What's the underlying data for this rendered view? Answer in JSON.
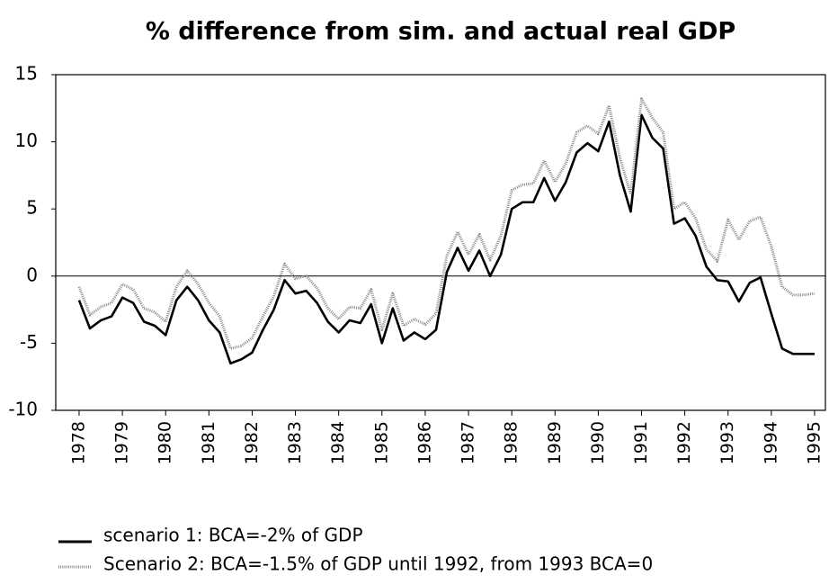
{
  "chart_data": {
    "type": "line",
    "title": "% difference from sim. and actual real GDP",
    "x": [
      1978,
      1978.25,
      1978.5,
      1978.75,
      1979,
      1979.25,
      1979.5,
      1979.75,
      1980,
      1980.25,
      1980.5,
      1980.75,
      1981,
      1981.25,
      1981.5,
      1981.75,
      1982,
      1982.25,
      1982.5,
      1982.75,
      1983,
      1983.25,
      1983.5,
      1983.75,
      1984,
      1984.25,
      1984.5,
      1984.75,
      1985,
      1985.25,
      1985.5,
      1985.75,
      1986,
      1986.25,
      1986.5,
      1986.75,
      1987,
      1987.25,
      1987.5,
      1987.75,
      1988,
      1988.25,
      1988.5,
      1988.75,
      1989,
      1989.25,
      1989.5,
      1989.75,
      1990,
      1990.25,
      1990.5,
      1990.75,
      1991,
      1991.25,
      1991.5,
      1991.75,
      1992,
      1992.25,
      1992.5,
      1992.75,
      1993,
      1993.25,
      1993.5,
      1993.75,
      1994,
      1994.25,
      1994.5,
      1994.75,
      1995
    ],
    "series": [
      {
        "name": "scenario 1: BCA=-2% of GDP",
        "color": "#000000",
        "style": "solid",
        "values": [
          -1.8,
          -3.9,
          -3.3,
          -3.0,
          -1.6,
          -2.0,
          -3.4,
          -3.7,
          -4.4,
          -1.8,
          -0.8,
          -1.8,
          -3.3,
          -4.2,
          -6.5,
          -6.2,
          -5.7,
          -4.0,
          -2.5,
          -0.3,
          -1.3,
          -1.1,
          -2.0,
          -3.4,
          -4.2,
          -3.3,
          -3.5,
          -2.1,
          -5.0,
          -2.4,
          -4.8,
          -4.2,
          -4.7,
          -4.0,
          0.3,
          2.1,
          0.4,
          1.9,
          0.0,
          1.6,
          5.0,
          5.5,
          5.5,
          7.3,
          5.6,
          7.0,
          9.2,
          9.9,
          9.3,
          11.5,
          7.5,
          4.8,
          12.0,
          10.3,
          9.5,
          3.9,
          4.3,
          3.0,
          0.7,
          -0.3,
          -0.4,
          -1.9,
          -0.5,
          -0.1,
          -2.8,
          -5.4,
          -5.8,
          -5.8,
          -5.8
        ]
      },
      {
        "name": "Scenario 2: BCA=-1.5% of GDP until 1992, from 1993 BCA=0",
        "color": "#8a8a8a",
        "style": "dotted",
        "values": [
          -0.8,
          -2.9,
          -2.3,
          -2.0,
          -0.6,
          -1.0,
          -2.4,
          -2.7,
          -3.4,
          -0.8,
          0.4,
          -0.6,
          -2.0,
          -3.0,
          -5.4,
          -5.2,
          -4.6,
          -3.0,
          -1.5,
          0.9,
          -0.2,
          0.0,
          -0.9,
          -2.4,
          -3.2,
          -2.3,
          -2.4,
          -1.0,
          -4.0,
          -1.3,
          -3.7,
          -3.2,
          -3.6,
          -2.8,
          1.5,
          3.3,
          1.6,
          3.1,
          1.2,
          3.0,
          6.4,
          6.8,
          6.9,
          8.6,
          7.0,
          8.4,
          10.7,
          11.2,
          10.6,
          12.7,
          8.8,
          6.1,
          13.2,
          11.8,
          10.7,
          5.0,
          5.5,
          4.3,
          2.0,
          1.1,
          4.2,
          2.7,
          4.1,
          4.4,
          2.2,
          -0.8,
          -1.4,
          -1.4,
          -1.3
        ]
      }
    ],
    "xlim": [
      1977.46,
      1995.25
    ],
    "xticks": [
      1978,
      1979,
      1980,
      1981,
      1982,
      1983,
      1984,
      1985,
      1986,
      1987,
      1988,
      1989,
      1990,
      1991,
      1992,
      1993,
      1994,
      1995
    ],
    "ylim": [
      -10,
      15
    ],
    "yticks": [
      -10,
      -5,
      0,
      5,
      10,
      15
    ],
    "zero_line": true
  }
}
